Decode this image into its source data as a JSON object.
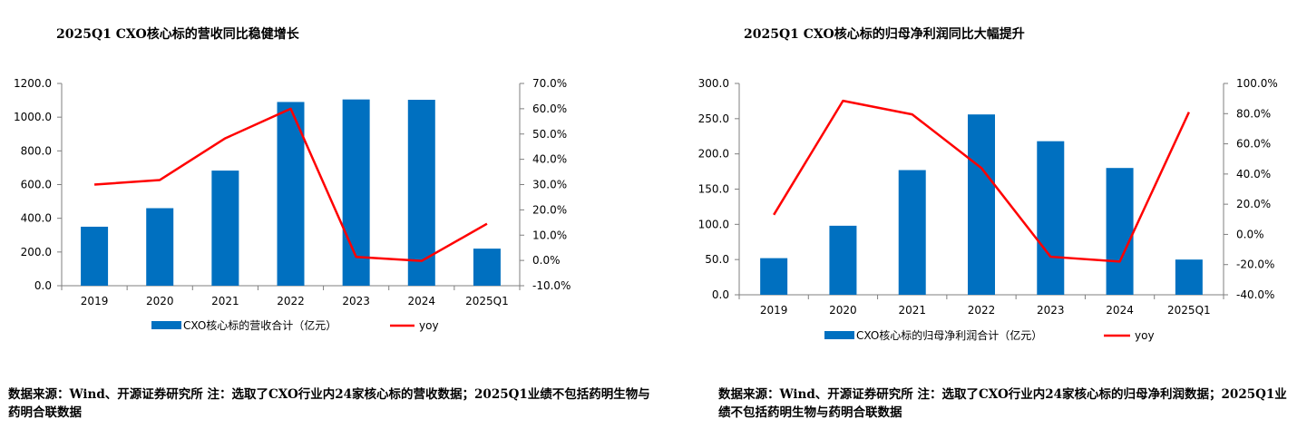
{
  "charts": [
    {
      "title": "2025Q1 CXO核心标的营收同比稳健增长",
      "source_text": "数据来源：Wind、开源证券研究所 注：选取了CXO行业内24家核心标的营收数据；2025Q1业绩不包括药明生物与药明合联数据"
    },
    {
      "title": "2025Q1 CXO核心标的归母净利润同比大幅提升",
      "source_text": "数据来源：Wind、开源证券研究所 注：选取了CXO行业内24家核心标的归母净利润数据；2025Q1业绩不包括药明生物与药明合联数据"
    }
  ],
  "chart_data": [
    {
      "type": "bar",
      "title": "2025Q1 CXO核心标的营收同比稳健增长",
      "categories": [
        "2019",
        "2020",
        "2021",
        "2022",
        "2023",
        "2024",
        "2025Q1"
      ],
      "series": [
        {
          "name": "CXO核心标的营收合计（亿元）",
          "type": "bar",
          "axis": "left",
          "color": "#0070c0",
          "values": [
            350,
            460,
            683,
            1090,
            1105,
            1103,
            220
          ]
        },
        {
          "name": "yoy",
          "type": "line",
          "axis": "right",
          "color": "#ff0000",
          "values": [
            30.0,
            31.8,
            48.3,
            60.0,
            1.4,
            -0.2,
            14.5
          ]
        }
      ],
      "y_left": {
        "min": 0,
        "max": 1200,
        "step": 200,
        "decimals": 1,
        "suffix": ""
      },
      "y_right": {
        "min": -10,
        "max": 70,
        "step": 10,
        "decimals": 1,
        "suffix": "%"
      },
      "grid": false,
      "legend": "bottom"
    },
    {
      "type": "bar",
      "title": "2025Q1 CXO核心标的归母净利润同比大幅提升",
      "categories": [
        "2019",
        "2020",
        "2021",
        "2022",
        "2023",
        "2024",
        "2025Q1"
      ],
      "series": [
        {
          "name": "CXO核心标的归母净利润合计（亿元）",
          "type": "bar",
          "axis": "left",
          "color": "#0070c0",
          "values": [
            52,
            98,
            177,
            256,
            218,
            180,
            50
          ]
        },
        {
          "name": "yoy",
          "type": "line",
          "axis": "right",
          "color": "#ff0000",
          "values": [
            13.0,
            88.5,
            79.5,
            44.0,
            -14.8,
            -18.0,
            81.0
          ]
        }
      ],
      "y_left": {
        "min": 0,
        "max": 300,
        "step": 50,
        "decimals": 1,
        "suffix": ""
      },
      "y_right": {
        "min": -40,
        "max": 100,
        "step": 20,
        "decimals": 1,
        "suffix": "%"
      },
      "grid": false,
      "legend": "bottom"
    }
  ]
}
